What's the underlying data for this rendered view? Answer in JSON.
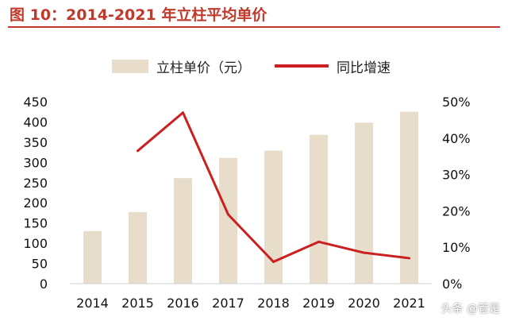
{
  "title": "图 10：2014-2021 年立柱平均单价",
  "legend": {
    "bar_label": "立柱单价（元）",
    "line_label": "同比增速"
  },
  "watermark": "头条 @管是",
  "colors": {
    "bar": "#e8dccb",
    "line": "#cc1f1f",
    "title": "#c0392b"
  },
  "chart_data": {
    "type": "bar",
    "categories": [
      "2014",
      "2015",
      "2016",
      "2017",
      "2018",
      "2019",
      "2020",
      "2021"
    ],
    "series": [
      {
        "name": "立柱单价（元）",
        "type": "bar",
        "axis": "left",
        "values": [
          130,
          177,
          261,
          311,
          329,
          368,
          398,
          425
        ]
      },
      {
        "name": "同比增速",
        "type": "line",
        "axis": "right",
        "values": [
          null,
          36.5,
          47.0,
          19.0,
          6.0,
          11.5,
          8.5,
          7.0
        ]
      }
    ],
    "y_left": {
      "ylim": [
        0,
        450
      ],
      "ticks": [
        "0",
        "50",
        "100",
        "150",
        "200",
        "250",
        "300",
        "350",
        "400",
        "450"
      ]
    },
    "y_right": {
      "ylim": [
        0,
        50
      ],
      "ticks": [
        "0%",
        "10%",
        "20%",
        "30%",
        "40%",
        "50%"
      ]
    },
    "grid": false,
    "legend_position": "top"
  }
}
